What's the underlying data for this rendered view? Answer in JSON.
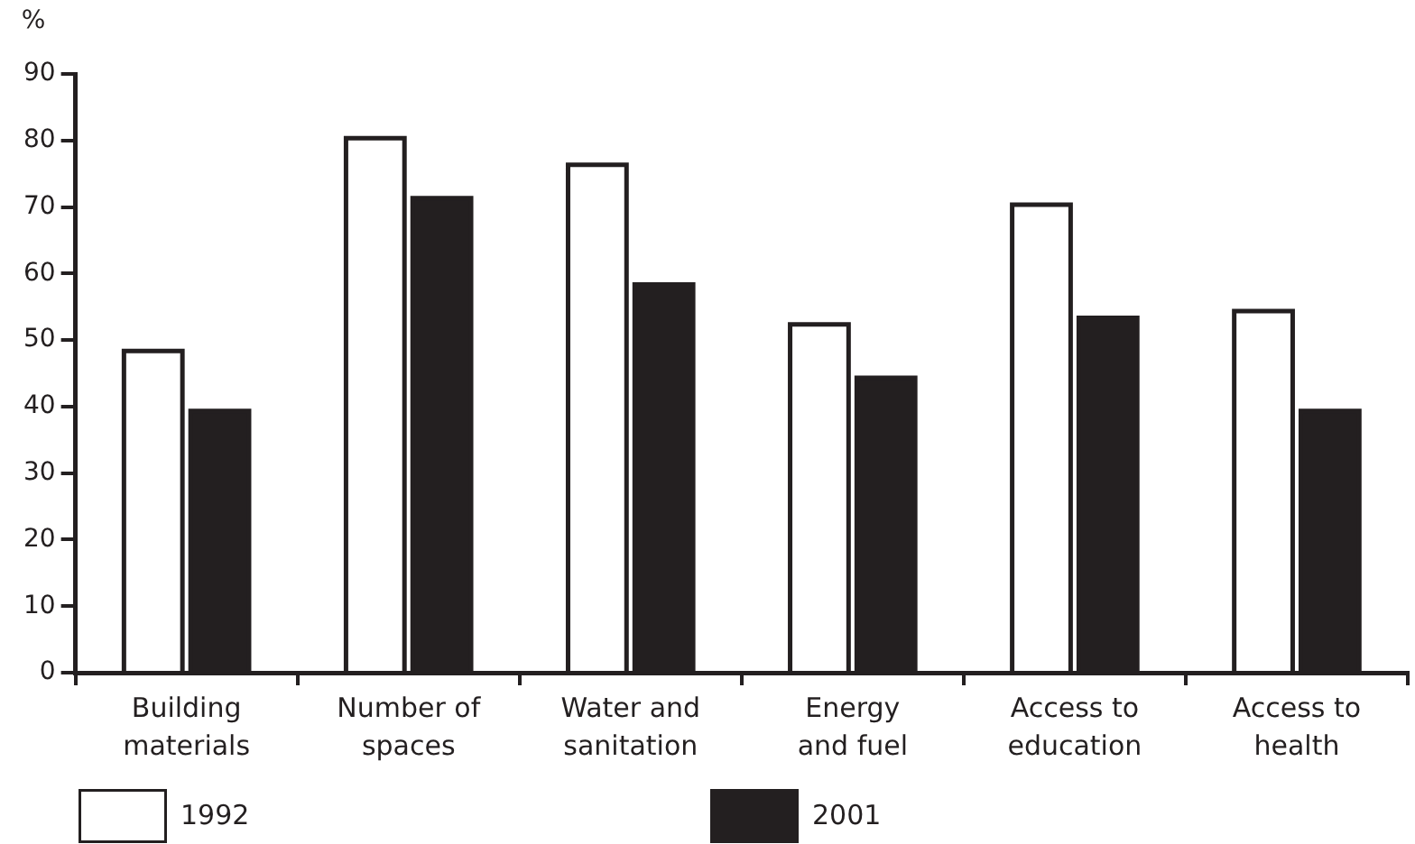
{
  "chart_data": {
    "type": "bar",
    "ylabel": "%",
    "categories": [
      "Building materials",
      "Number of spaces",
      "Water and sanitation",
      "Energy and fuel",
      "Access to education",
      "Access to health"
    ],
    "series": [
      {
        "name": "1992",
        "color": "#ffffff",
        "values": [
          48,
          80,
          76,
          52,
          70,
          54
        ]
      },
      {
        "name": "2001",
        "color": "#231f20",
        "values": [
          39,
          71,
          58,
          44,
          53,
          39
        ]
      }
    ],
    "ylim": [
      0,
      90
    ],
    "yticks": [
      0,
      10,
      20,
      30,
      40,
      50,
      60,
      70,
      80,
      90
    ],
    "legend": "bottom"
  }
}
